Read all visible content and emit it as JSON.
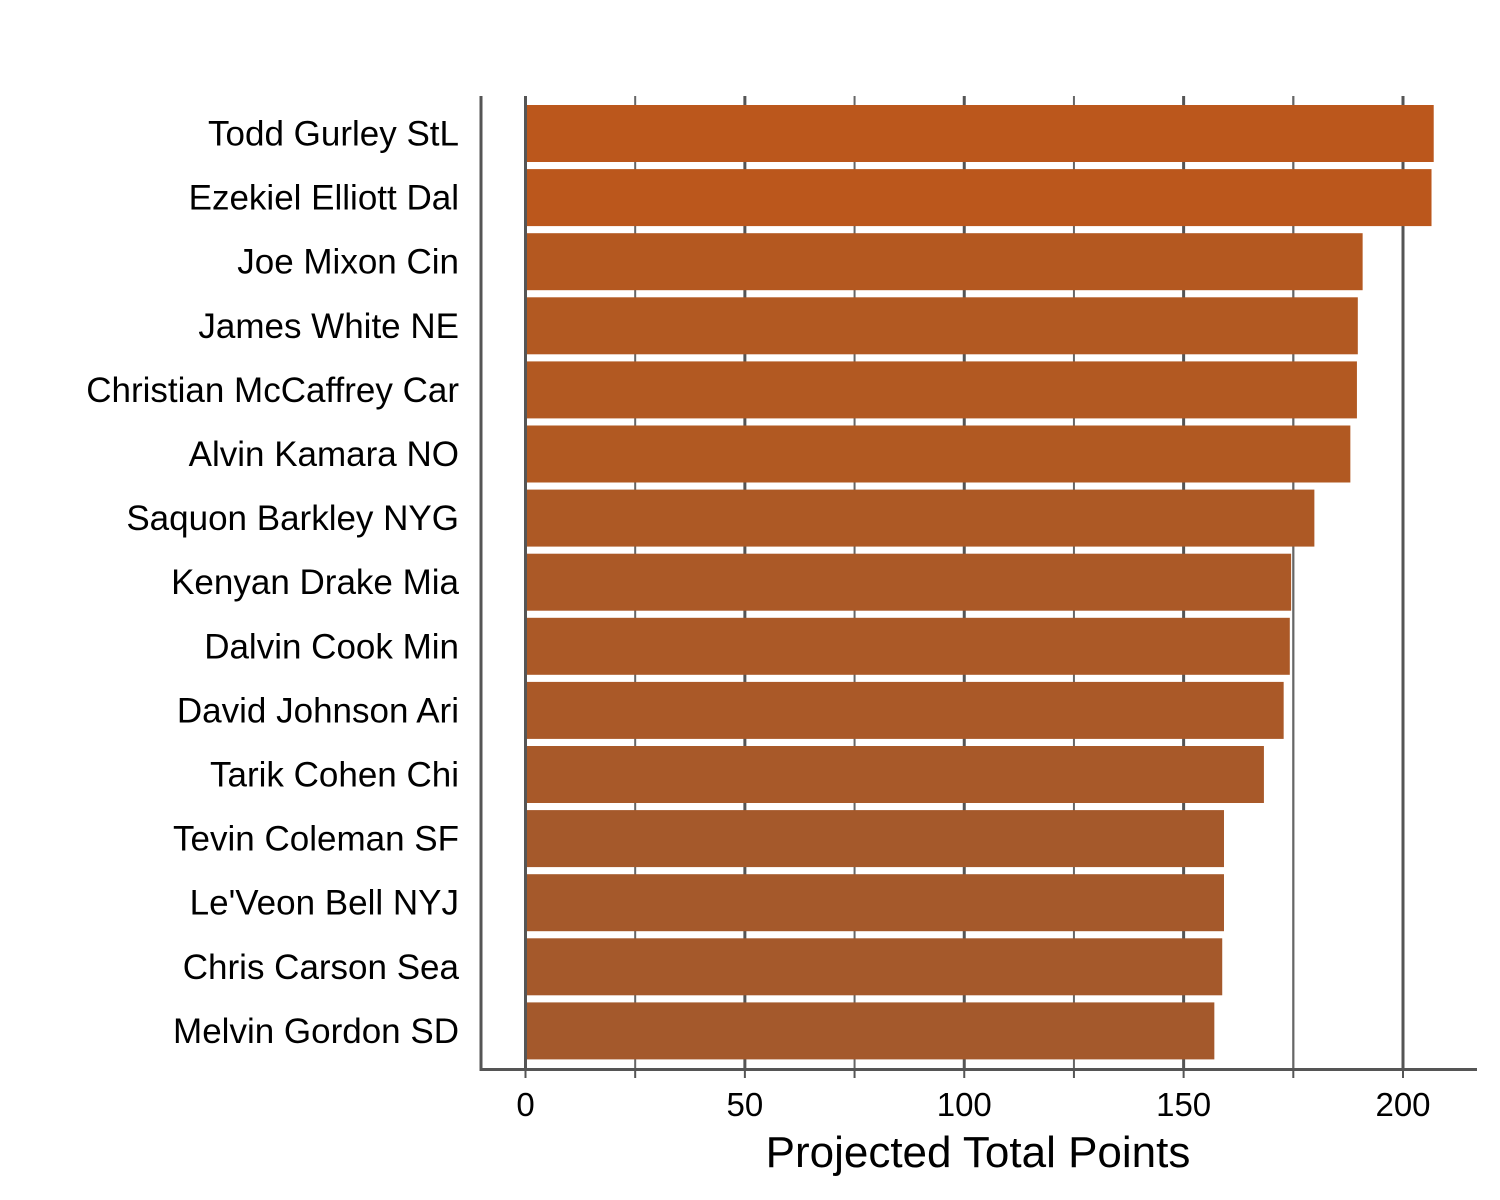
{
  "chart_data": {
    "type": "bar",
    "orientation": "horizontal",
    "title": "",
    "xlabel": "Projected Total Points",
    "ylabel": "",
    "xlim": [
      -10,
      217
    ],
    "x_ticks": [
      "0",
      "50",
      "100",
      "150",
      "200"
    ],
    "grid": "vertical",
    "reference_line": 175,
    "categories": [
      "Todd Gurley StL",
      "Ezekiel Elliott Dal",
      "Joe Mixon Cin",
      "James White NE",
      "Christian McCaffrey Car",
      "Alvin Kamara NO",
      "Saquon Barkley NYG",
      "Kenyan Drake Mia",
      "Dalvin Cook Min",
      "David Johnson Ari",
      "Tarik Cohen Chi",
      "Tevin Coleman SF",
      "Le'Veon Bell NYJ",
      "Chris Carson Sea",
      "Melvin Gordon SD"
    ],
    "values": [
      207,
      206.5,
      190.8,
      189.7,
      189.5,
      188,
      179.8,
      174.5,
      174.2,
      172.8,
      168.3,
      159.2,
      159.2,
      158.8,
      157
    ],
    "colors": [
      "#bb571c",
      "#bb571c",
      "#b45820",
      "#b25922",
      "#b25922",
      "#b15922",
      "#ad5925",
      "#ab5927",
      "#ab5927",
      "#aa5928",
      "#a85929",
      "#a5592b",
      "#a5592b",
      "#a5592b",
      "#a4592c"
    ]
  }
}
